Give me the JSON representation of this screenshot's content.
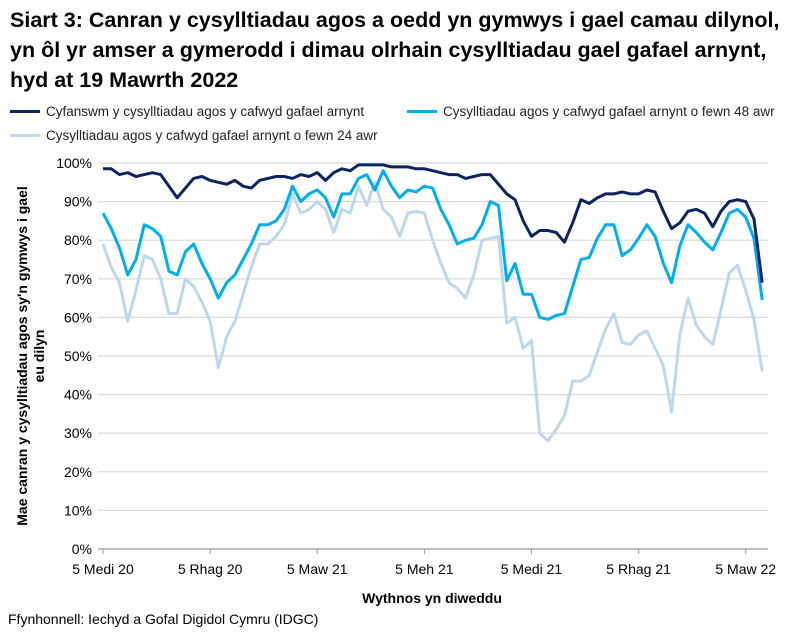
{
  "chart_data": {
    "type": "line",
    "title": "Siart 3: Canran y cysylltiadau agos a oedd yn gymwys i gael camau dilynol, yn ôl yr amser a gymerodd i dimau olrhain cysylltiadau gael gafael arnynt, hyd at 19 Mawrth 2022",
    "xlabel": "Wythnos yn diweddu",
    "ylabel": "Mae canran y cysylltiadau agos sy'n gymwys i gael eu dilyn",
    "ylim": [
      0,
      100
    ],
    "yticks": [
      "0%",
      "10%",
      "20%",
      "30%",
      "40%",
      "50%",
      "60%",
      "70%",
      "80%",
      "90%",
      "100%"
    ],
    "xticks": [
      "5 Medi 20",
      "5 Rhag 20",
      "5 Maw 21",
      "5 Meh 21",
      "5 Medi 21",
      "5 Rhag 21",
      "5 Maw 22"
    ],
    "grid": true,
    "legend_position": "top",
    "series": [
      {
        "name": "Cyfanswm y cysylltiadau agos y cafwyd gafael arnynt",
        "color": "#0c2461",
        "values": [
          98.5,
          98.5,
          97,
          97.5,
          96.5,
          97,
          97.5,
          97,
          94,
          91,
          93.5,
          96,
          96.5,
          95.5,
          95,
          94.5,
          95.5,
          94,
          93.5,
          95.5,
          96,
          96.5,
          96.5,
          96,
          97,
          96.5,
          97.5,
          95.5,
          97.5,
          98.5,
          98,
          99.5,
          99.5,
          99.5,
          99.5,
          99,
          99,
          99,
          98.5,
          98.5,
          98,
          97.5,
          97,
          97,
          96,
          96.5,
          97,
          97,
          94.5,
          92,
          90.5,
          85,
          81,
          82.5,
          82.5,
          82,
          79.5,
          84.5,
          90.5,
          89.5,
          91,
          92,
          92,
          92.5,
          92,
          92,
          93,
          92.5,
          87.5,
          83,
          84.5,
          87.5,
          88,
          87,
          83.5,
          87.5,
          90,
          90.5,
          90,
          85.5,
          69
        ]
      },
      {
        "name": "Cysylltiadau agos y cafwyd gafael arnynt o fewn 48 awr",
        "color": "#00aeef",
        "values": [
          87,
          83,
          78,
          71,
          75,
          84,
          83,
          81,
          72,
          71,
          77,
          79,
          74,
          70,
          65,
          69,
          71,
          75,
          79,
          84,
          84,
          85,
          88,
          94,
          90,
          92,
          93,
          91,
          86,
          92,
          92,
          96,
          97,
          93,
          98,
          94,
          91,
          93,
          92.5,
          94,
          93.5,
          88,
          84,
          79,
          80,
          80.5,
          84,
          90,
          89,
          69.5,
          74,
          66,
          66,
          60,
          59.5,
          60.5,
          61,
          68,
          75,
          75.5,
          80.5,
          84,
          84,
          76,
          77.5,
          80.5,
          84,
          81,
          74,
          69,
          78.5,
          84,
          82,
          79.5,
          77.5,
          82,
          87,
          88,
          86,
          80.5,
          64.5
        ]
      },
      {
        "name": "Cysylltiadau agos y cafwyd gafael arnynt o fewn 24 awr",
        "color": "#bdd7ee",
        "values": [
          79,
          73,
          69,
          59,
          67,
          76,
          75,
          70,
          61,
          61,
          70,
          68,
          64,
          59,
          47,
          55,
          59,
          66,
          73,
          79,
          79,
          81,
          84,
          92,
          87,
          88,
          90,
          88,
          82,
          88,
          87,
          94,
          89,
          95,
          88,
          86,
          81,
          87,
          87.5,
          87,
          80,
          74,
          69,
          67.5,
          65,
          71,
          80,
          80.5,
          81,
          58.5,
          60,
          52,
          54,
          30,
          28,
          31,
          34.5,
          43.5,
          43.5,
          45,
          51,
          57,
          61,
          53.5,
          53,
          55.5,
          56.5,
          52,
          47.5,
          35.5,
          55.5,
          65,
          58,
          55,
          53,
          62,
          71.5,
          73.5,
          67,
          59.5,
          46
        ]
      }
    ]
  },
  "source": "Ffynhonnell: Iechyd a Gofal Digidol Cymru (IDGC)"
}
